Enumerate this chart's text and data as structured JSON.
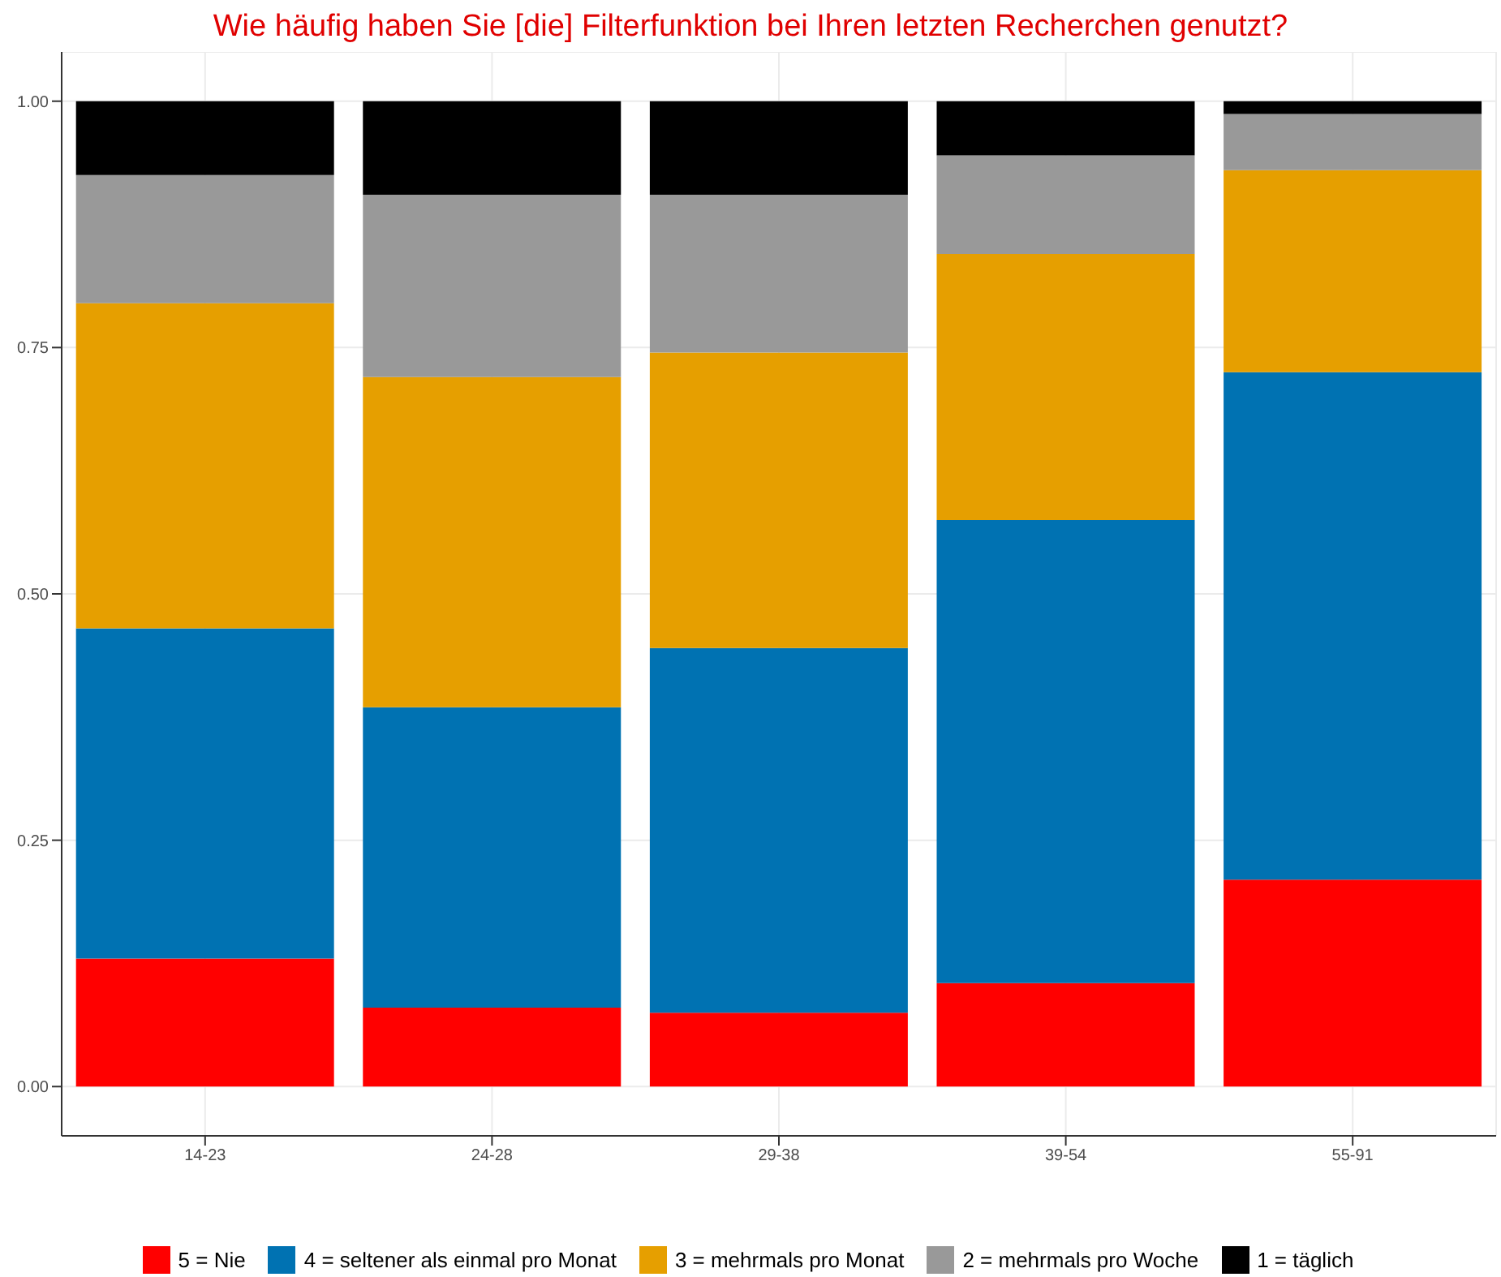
{
  "chart_data": {
    "type": "bar",
    "title": "Wie häufig haben Sie [die] Filterfunktion bei Ihren letzten Recherchen genutzt?",
    "categories": [
      "14-23",
      "24-28",
      "29-38",
      "39-54",
      "55-91"
    ],
    "stacked": true,
    "series": [
      {
        "name": "5 = Nie",
        "color": "#ff0000",
        "values": [
          0.13,
          0.08,
          0.075,
          0.105,
          0.21
        ]
      },
      {
        "name": "4 = seltener als einmal pro Monat",
        "color": "#0072b2",
        "values": [
          0.335,
          0.305,
          0.37,
          0.47,
          0.515
        ]
      },
      {
        "name": "3 = mehrmals pro Monat",
        "color": "#e69f00",
        "values": [
          0.33,
          0.335,
          0.3,
          0.27,
          0.205
        ]
      },
      {
        "name": "2 = mehrmals pro Woche",
        "color": "#999999",
        "values": [
          0.13,
          0.185,
          0.16,
          0.1,
          0.057
        ]
      },
      {
        "name": "1 = täglich",
        "color": "#000000",
        "values": [
          0.075,
          0.095,
          0.095,
          0.055,
          0.013
        ]
      }
    ],
    "ylim": [
      -0.05,
      1.05
    ],
    "yticks": [
      {
        "value": 0,
        "label": "0.00"
      },
      {
        "value": 0.25,
        "label": "0.25"
      },
      {
        "value": 0.5,
        "label": "0.50"
      },
      {
        "value": 0.75,
        "label": "0.75"
      },
      {
        "value": 1,
        "label": "1.00"
      }
    ],
    "grid": true,
    "legend": "bottom"
  }
}
